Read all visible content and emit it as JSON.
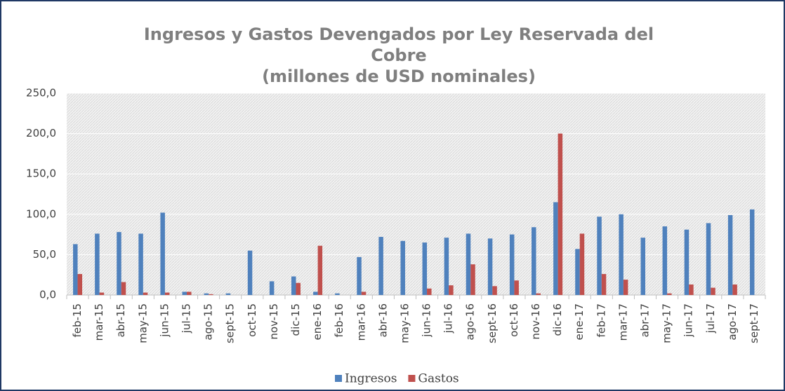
{
  "chart_data": {
    "type": "bar",
    "title": [
      "Ingresos y Gastos Devengados por Ley Reservada del",
      "Cobre",
      "(millones de USD nominales)"
    ],
    "categories": [
      "feb-15",
      "mar-15",
      "abr-15",
      "may-15",
      "jun-15",
      "jul-15",
      "ago-15",
      "sept-15",
      "oct-15",
      "nov-15",
      "dic-15",
      "ene-16",
      "feb-16",
      "mar-16",
      "abr-16",
      "may-16",
      "jun-16",
      "jul-16",
      "ago-16",
      "sept-16",
      "oct-16",
      "nov-16",
      "dic-16",
      "ene-17",
      "feb-17",
      "mar-17",
      "abr-17",
      "may-17",
      "jun-17",
      "jul-17",
      "ago-17",
      "sept-17"
    ],
    "series": [
      {
        "name": "Ingresos",
        "color": "#4f81bd",
        "values": [
          63,
          76,
          78,
          76,
          102,
          4,
          2,
          2,
          55,
          17,
          23,
          4,
          2,
          47,
          72,
          67,
          65,
          71,
          76,
          70,
          75,
          84,
          115,
          57,
          97,
          100,
          71,
          85,
          81,
          89,
          99,
          106
        ]
      },
      {
        "name": "Gastos",
        "color": "#c0504d",
        "values": [
          26,
          3,
          16,
          3,
          3,
          4,
          1,
          0,
          0,
          0,
          15,
          61,
          0,
          4,
          0,
          0,
          8,
          12,
          38,
          11,
          18,
          2,
          200,
          76,
          26,
          19,
          0,
          2,
          13,
          9,
          13,
          0
        ]
      }
    ],
    "ylim": [
      0,
      250
    ],
    "yticks": [
      {
        "value": 0,
        "label": "0,0"
      },
      {
        "value": 50,
        "label": "50,0"
      },
      {
        "value": 100,
        "label": "100,0"
      },
      {
        "value": 150,
        "label": "150,0"
      },
      {
        "value": 200,
        "label": "200,0"
      },
      {
        "value": 250,
        "label": "250,0"
      }
    ],
    "grid": true,
    "legend": "bottom"
  }
}
